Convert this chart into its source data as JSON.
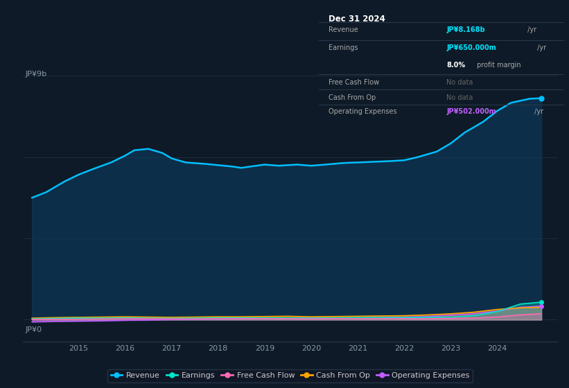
{
  "bg_color": "#0e1a27",
  "plot_bg_color": "#0e1a27",
  "y_label_top": "JP¥9b",
  "y_label_bottom": "JP¥0",
  "x_ticks": [
    2015,
    2016,
    2017,
    2018,
    2019,
    2020,
    2021,
    2022,
    2023,
    2024
  ],
  "revenue": {
    "years": [
      2014.0,
      2014.3,
      2014.7,
      2015.0,
      2015.3,
      2015.7,
      2016.0,
      2016.2,
      2016.5,
      2016.8,
      2017.0,
      2017.3,
      2017.7,
      2018.0,
      2018.3,
      2018.5,
      2018.7,
      2019.0,
      2019.3,
      2019.7,
      2020.0,
      2020.3,
      2020.7,
      2021.0,
      2021.3,
      2021.7,
      2022.0,
      2022.3,
      2022.7,
      2023.0,
      2023.3,
      2023.7,
      2024.0,
      2024.3,
      2024.7,
      2024.95
    ],
    "values": [
      4.5,
      4.7,
      5.1,
      5.35,
      5.55,
      5.8,
      6.05,
      6.25,
      6.3,
      6.15,
      5.95,
      5.8,
      5.75,
      5.7,
      5.65,
      5.6,
      5.65,
      5.72,
      5.68,
      5.72,
      5.68,
      5.72,
      5.78,
      5.8,
      5.82,
      5.85,
      5.88,
      6.0,
      6.2,
      6.5,
      6.9,
      7.3,
      7.7,
      8.0,
      8.15,
      8.168
    ],
    "color": "#00bfff",
    "fill_color": "#0d3a5c"
  },
  "earnings": {
    "years": [
      2014.0,
      2014.5,
      2015.0,
      2015.5,
      2016.0,
      2016.5,
      2017.0,
      2017.5,
      2018.0,
      2018.5,
      2019.0,
      2019.5,
      2020.0,
      2020.5,
      2021.0,
      2021.5,
      2022.0,
      2022.5,
      2023.0,
      2023.5,
      2024.0,
      2024.5,
      2024.95
    ],
    "values": [
      0.03,
      0.05,
      0.06,
      0.06,
      0.07,
      0.06,
      0.05,
      0.06,
      0.07,
      0.07,
      0.07,
      0.07,
      0.06,
      0.07,
      0.08,
      0.08,
      0.08,
      0.09,
      0.1,
      0.15,
      0.3,
      0.58,
      0.65
    ],
    "color": "#00e5cc"
  },
  "free_cash_flow": {
    "years": [
      2014.0,
      2014.5,
      2015.0,
      2015.5,
      2016.0,
      2016.5,
      2017.0,
      2017.5,
      2018.0,
      2018.5,
      2019.0,
      2019.5,
      2020.0,
      2020.5,
      2021.0,
      2021.5,
      2022.0,
      2022.5,
      2023.0,
      2023.5,
      2024.0,
      2024.5,
      2024.95
    ],
    "values": [
      0.01,
      0.02,
      0.02,
      0.03,
      0.04,
      0.04,
      0.03,
      0.03,
      0.04,
      0.04,
      0.04,
      0.04,
      0.03,
      0.04,
      0.04,
      0.04,
      0.04,
      0.04,
      0.05,
      0.06,
      0.1,
      0.18,
      0.22
    ],
    "color": "#ff69b4"
  },
  "cash_from_op": {
    "years": [
      2014.0,
      2014.5,
      2015.0,
      2015.5,
      2016.0,
      2016.5,
      2017.0,
      2017.5,
      2018.0,
      2018.5,
      2019.0,
      2019.5,
      2020.0,
      2020.5,
      2021.0,
      2021.5,
      2022.0,
      2022.5,
      2023.0,
      2023.5,
      2024.0,
      2024.5,
      2024.95
    ],
    "values": [
      0.06,
      0.08,
      0.09,
      0.1,
      0.11,
      0.1,
      0.09,
      0.1,
      0.11,
      0.11,
      0.12,
      0.13,
      0.11,
      0.12,
      0.13,
      0.14,
      0.15,
      0.18,
      0.22,
      0.28,
      0.38,
      0.44,
      0.46
    ],
    "color": "#ffa500"
  },
  "operating_expenses": {
    "years": [
      2014.0,
      2014.5,
      2015.0,
      2015.5,
      2016.0,
      2016.5,
      2017.0,
      2017.5,
      2018.0,
      2018.5,
      2019.0,
      2019.5,
      2020.0,
      2020.3,
      2020.7,
      2021.0,
      2021.3,
      2021.7,
      2022.0,
      2022.5,
      2023.0,
      2023.5,
      2024.0,
      2024.5,
      2024.95
    ],
    "values": [
      -0.08,
      -0.06,
      -0.05,
      -0.04,
      -0.02,
      -0.01,
      0.01,
      0.02,
      0.03,
      0.04,
      0.05,
      0.06,
      0.07,
      0.07,
      0.07,
      0.07,
      0.08,
      0.09,
      0.1,
      0.12,
      0.17,
      0.22,
      0.32,
      0.46,
      0.502
    ],
    "color": "#bf5fff",
    "fill_color_neg": "#1a0a2e"
  },
  "info_box": {
    "date": "Dec 31 2024",
    "revenue_label": "Revenue",
    "revenue_value": "JP¥8.168b",
    "revenue_unit": " /yr",
    "earnings_label": "Earnings",
    "earnings_value": "JP¥650.000m",
    "earnings_unit": " /yr",
    "profit_pct": "8.0%",
    "profit_text": " profit margin",
    "fcf_label": "Free Cash Flow",
    "fcf_value": "No data",
    "cashop_label": "Cash From Op",
    "cashop_value": "No data",
    "opex_label": "Operating Expenses",
    "opex_value": "JP¥502.000m",
    "opex_unit": " /yr",
    "value_color": "#00e5ff",
    "opex_color": "#bf5fff",
    "nodata_color": "#666666",
    "box_bg": "#080e14",
    "box_border": "#2a3a4a"
  },
  "legend": [
    {
      "label": "Revenue",
      "color": "#00bfff"
    },
    {
      "label": "Earnings",
      "color": "#00e5cc"
    },
    {
      "label": "Free Cash Flow",
      "color": "#ff69b4"
    },
    {
      "label": "Cash From Op",
      "color": "#ffa500"
    },
    {
      "label": "Operating Expenses",
      "color": "#bf5fff"
    }
  ],
  "ylim": [
    -0.8,
    9.5
  ],
  "xlim": [
    2013.8,
    2025.3
  ],
  "grid_lines": [
    0.0,
    3.0,
    6.0,
    9.0
  ]
}
